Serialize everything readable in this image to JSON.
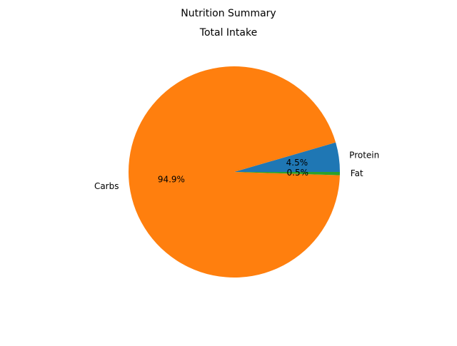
{
  "chart_data": {
    "type": "pie",
    "suptitle": "Nutrition Summary",
    "title": "Total Intake",
    "slices": [
      {
        "label": "Protein",
        "percent": 4.5,
        "percent_label": "4.5%",
        "color": "#1f77b4"
      },
      {
        "label": "Carbs",
        "percent": 94.9,
        "percent_label": "94.9%",
        "color": "#ff7f0e"
      },
      {
        "label": "Fat",
        "percent": 0.5,
        "percent_label": "0.5%",
        "color": "#2ca02c"
      }
    ],
    "start_angle_deg": 0,
    "direction": "counterclockwise"
  }
}
